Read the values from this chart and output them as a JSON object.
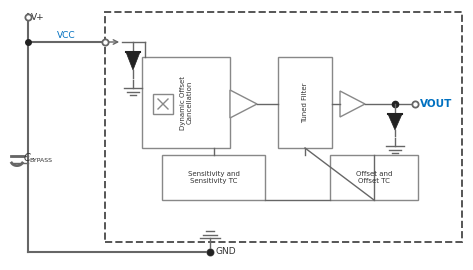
{
  "bg_color": "#ffffff",
  "lc": "#888888",
  "dk": "#222222",
  "blue": "#0070C0",
  "black": "#333333",
  "vplus": "V+",
  "vcc": "VCC",
  "vout": "VOUT",
  "gnd": "GND",
  "cbypass_main": "C",
  "cbypass_sub": "BYPASS",
  "block1": "Dynamic Offset\nCancellation",
  "block2": "Tuned Filter",
  "block3": "Sensitivity and\nSensitivity TC",
  "block4": "Offset and\nOffset TC"
}
